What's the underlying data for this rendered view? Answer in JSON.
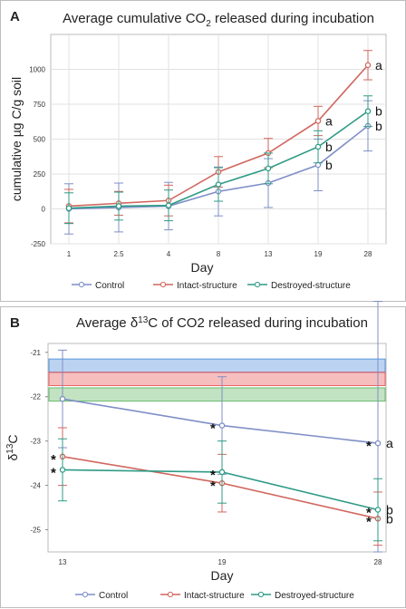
{
  "chart_data": [
    {
      "type": "line",
      "panel_label": "A",
      "title_main": "Average cumulative CO",
      "title_sub": "2",
      "title_rest": " released during incubation",
      "ylabel": "cumulative µg C/g soil",
      "xlabel": "Day",
      "categories": [
        "1",
        "2.5",
        "4",
        "8",
        "13",
        "19",
        "28"
      ],
      "ylim": [
        -250,
        1250
      ],
      "yticks": [
        "-250",
        "0",
        "250",
        "500",
        "750",
        "1000"
      ],
      "ytick_values": [
        -250,
        0,
        250,
        500,
        750,
        1000
      ],
      "grid": true,
      "legend_position": "bottom",
      "series": [
        {
          "name": "Control",
          "color": "#7f8fc6",
          "values": [
            0,
            10,
            20,
            125,
            185,
            315,
            595
          ],
          "errors": [
            180,
            175,
            170,
            175,
            175,
            185,
            180
          ]
        },
        {
          "name": "Intact-structure",
          "color": "#d0675e",
          "values": [
            20,
            40,
            60,
            265,
            400,
            630,
            1030
          ],
          "errors": [
            120,
            85,
            110,
            110,
            105,
            105,
            105
          ]
        },
        {
          "name": "Destroyed-structure",
          "color": "#2e9b86",
          "values": [
            5,
            20,
            25,
            175,
            290,
            445,
            700
          ],
          "errors": [
            110,
            100,
            110,
            120,
            110,
            115,
            110
          ]
        }
      ],
      "annotations": [
        {
          "text": "a",
          "series": 1,
          "index": 6
        },
        {
          "text": "a",
          "series": 1,
          "index": 5
        },
        {
          "text": "b",
          "series": 2,
          "index": 6
        },
        {
          "text": "b",
          "series": 0,
          "index": 6
        },
        {
          "text": "b",
          "series": 2,
          "index": 5
        },
        {
          "text": "b",
          "series": 0,
          "index": 5
        }
      ]
    },
    {
      "type": "line",
      "panel_label": "B",
      "title_main": "Average δ",
      "title_sup": "13",
      "title_rest": "C of CO2 released during incubation",
      "ylabel_main": "δ",
      "ylabel_sup": "13",
      "ylabel_rest": "C",
      "xlabel": "Day",
      "categories": [
        "13",
        "19",
        "28"
      ],
      "ylim": [
        -25.5,
        -20.8
      ],
      "yticks": [
        "-21",
        "-22",
        "-23",
        "-24",
        "-25"
      ],
      "ytick_values": [
        -21,
        -22,
        -23,
        -24,
        -25
      ],
      "grid": false,
      "legend_position": "bottom",
      "bands": [
        {
          "color": "#3b82d6",
          "range": [
            -21.45,
            -21.15
          ]
        },
        {
          "color": "#e84545",
          "range": [
            -21.75,
            -21.45
          ]
        },
        {
          "color": "#4caf50",
          "range": [
            -22.1,
            -21.8
          ]
        }
      ],
      "series": [
        {
          "name": "Control",
          "color": "#7f8fc6",
          "values": [
            -22.05,
            -22.65,
            -23.05
          ],
          "errors": [
            1.1,
            1.1,
            3.2
          ]
        },
        {
          "name": "Intact-structure",
          "color": "#d0675e",
          "values": [
            -23.35,
            -23.95,
            -24.75
          ],
          "errors": [
            0.65,
            0.65,
            0.6
          ]
        },
        {
          "name": "Destroyed-structure",
          "color": "#2e9b86",
          "values": [
            -23.65,
            -23.7,
            -24.55
          ],
          "errors": [
            0.7,
            0.7,
            0.7
          ]
        }
      ],
      "stars": [
        {
          "series": 1,
          "index": 0
        },
        {
          "series": 2,
          "index": 0
        },
        {
          "series": 0,
          "index": 1
        },
        {
          "series": 2,
          "index": 1
        },
        {
          "series": 1,
          "index": 1
        },
        {
          "series": 0,
          "index": 2
        },
        {
          "series": 2,
          "index": 2
        },
        {
          "series": 1,
          "index": 2
        }
      ],
      "annotations": [
        {
          "text": "a",
          "series": 0,
          "index": 2
        },
        {
          "text": "b",
          "series": 2,
          "index": 2
        },
        {
          "text": "b",
          "series": 1,
          "index": 2
        }
      ]
    }
  ]
}
